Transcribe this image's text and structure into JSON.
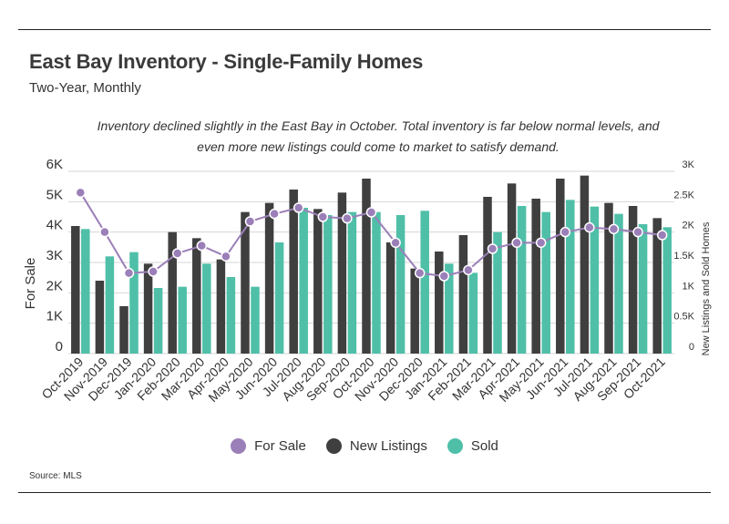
{
  "header": {
    "title": "East Bay Inventory - Single-Family Homes",
    "subtitle": "Two-Year, Monthly",
    "annotation": "Inventory declined slightly in the East Bay in October. Total inventory is far below normal levels, and even more new listings could come to market to satisfy demand."
  },
  "footer": {
    "source": "Source:  MLS"
  },
  "colors": {
    "for_sale": "#9b7fb8",
    "new_listings": "#3f3f3f",
    "sold": "#4fbfa8"
  },
  "chart_data": {
    "type": "bar",
    "categories": [
      "Oct-2019",
      "Nov-2019",
      "Dec-2019",
      "Jan-2020",
      "Feb-2020",
      "Mar-2020",
      "Apr-2020",
      "May-2020",
      "Jun-2020",
      "Jul-2020",
      "Aug-2020",
      "Sep-2020",
      "Oct-2020",
      "Nov-2020",
      "Dec-2020",
      "Jan-2021",
      "Feb-2021",
      "Mar-2021",
      "Apr-2021",
      "May-2021",
      "Jun-2021",
      "Jul-2021",
      "Aug-2021",
      "Sep-2021",
      "Oct-2021"
    ],
    "ylabel": "For Sale",
    "y2label": "New Listings and Sold Homes",
    "ylim": [
      0,
      6000
    ],
    "y2lim": [
      0,
      3000
    ],
    "yticks": [
      "0",
      "1K",
      "2K",
      "3K",
      "4K",
      "5K",
      "6K"
    ],
    "y2ticks": [
      "0",
      "0.5K",
      "1K",
      "1.5K",
      "2K",
      "2.5K",
      "3K"
    ],
    "grid": true,
    "legend_position": "bottom",
    "series": [
      {
        "name": "For Sale",
        "type": "line",
        "axis": "left",
        "values": [
          5300,
          4000,
          2650,
          2700,
          3300,
          3550,
          3200,
          4350,
          4600,
          4800,
          4500,
          4450,
          4650,
          3650,
          2650,
          2550,
          2750,
          3450,
          3650,
          3650,
          4000,
          4150,
          4100,
          4000,
          3900
        ]
      },
      {
        "name": "New Listings",
        "type": "bar",
        "axis": "right",
        "values": [
          2100,
          1200,
          780,
          1480,
          2000,
          1900,
          1550,
          2330,
          2480,
          2700,
          2380,
          2650,
          2880,
          1830,
          1400,
          1680,
          1950,
          2580,
          2800,
          2550,
          2880,
          2930,
          2480,
          2430,
          2230
        ]
      },
      {
        "name": "Sold",
        "type": "bar",
        "axis": "right",
        "values": [
          2050,
          1600,
          1670,
          1080,
          1100,
          1480,
          1260,
          1100,
          1830,
          2400,
          2280,
          2330,
          2330,
          2280,
          2350,
          1480,
          1330,
          2000,
          2430,
          2330,
          2530,
          2420,
          2300,
          2130,
          2080
        ]
      }
    ]
  },
  "legend": [
    "For Sale",
    "New Listings",
    "Sold"
  ]
}
